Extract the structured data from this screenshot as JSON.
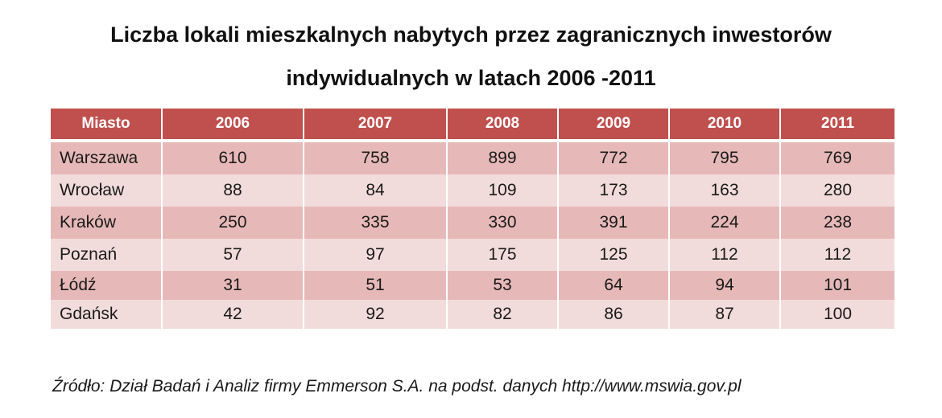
{
  "title": {
    "line1": "Liczba lokali mieszkalnych nabytych przez zagranicznych inwestorów",
    "line2": "indywidualnych w latach 2006 -2011"
  },
  "colors": {
    "header": "#c0504d",
    "row_dark": "#e6b9b8",
    "row_light": "#f2dcdb"
  },
  "chart_data": {
    "type": "table",
    "title": "Liczba lokali mieszkalnych nabytych przez zagranicznych inwestorów indywidualnych w latach 2006 -2011",
    "columns": [
      "Miasto",
      "2006",
      "2007",
      "2008",
      "2009",
      "2010",
      "2011"
    ],
    "rows": [
      [
        "Warszawa",
        "610",
        "758",
        "899",
        "772",
        "795",
        "769"
      ],
      [
        "Wrocław",
        "88",
        "84",
        "109",
        "173",
        "163",
        "280"
      ],
      [
        "Kraków",
        "250",
        "335",
        "330",
        "391",
        "224",
        "238"
      ],
      [
        "Poznań",
        "57",
        "97",
        "175",
        "125",
        "112",
        "112"
      ],
      [
        "Łódź",
        "31",
        "51",
        "53",
        "64",
        "94",
        "101"
      ],
      [
        "Gdańsk",
        "42",
        "92",
        "82",
        "86",
        "87",
        "100"
      ]
    ]
  },
  "source": "Źródło: Dział Badań i Analiz firmy Emmerson S.A. na podst. danych http://www.mswia.gov.pl"
}
